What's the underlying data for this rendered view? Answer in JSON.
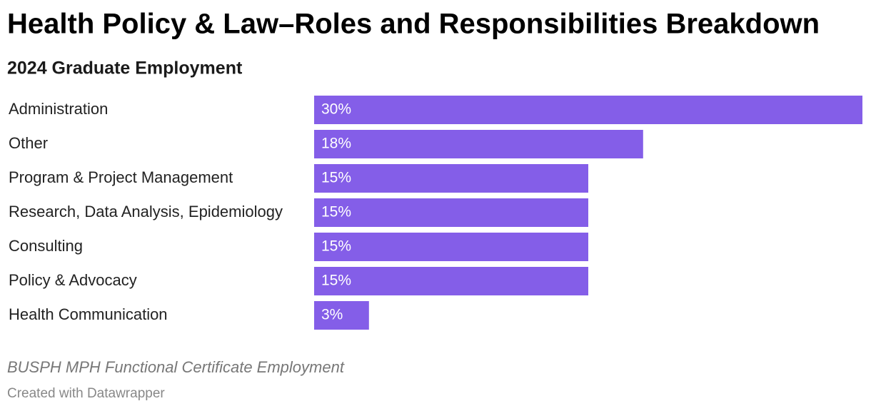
{
  "chart_data": {
    "type": "bar",
    "orientation": "horizontal",
    "title": "Health Policy & Law–Roles and Responsibilities Breakdown",
    "subtitle": "2024 Graduate Employment",
    "categories": [
      "Administration",
      "Other",
      "Program & Project Management",
      "Research, Data Analysis, Epidemiology",
      "Consulting",
      "Policy & Advocacy",
      "Health Communication"
    ],
    "values": [
      30,
      18,
      15,
      15,
      15,
      15,
      3
    ],
    "value_labels": [
      "30%",
      "18%",
      "15%",
      "15%",
      "15%",
      "15%",
      "3%"
    ],
    "color": "#845ee8",
    "xlim": [
      0,
      30
    ],
    "caption": "BUSPH MPH Functional Certificate Employment",
    "credit": "Created with Datawrapper"
  }
}
